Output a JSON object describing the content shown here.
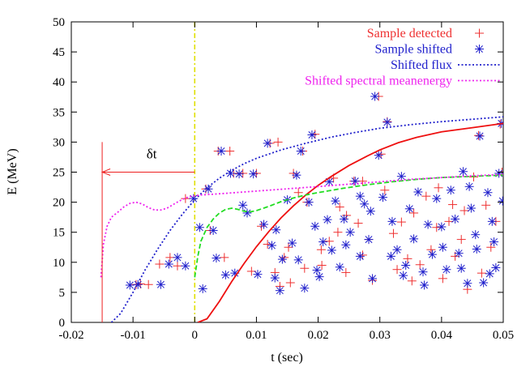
{
  "chart_data": {
    "type": "scatter",
    "title": "",
    "xlabel": "t (sec)",
    "ylabel": "E (MeV)",
    "xlim": [
      -0.02,
      0.05
    ],
    "ylim": [
      0,
      50
    ],
    "xticks": [
      -0.02,
      -0.01,
      0,
      0.01,
      0.02,
      0.03,
      0.04,
      0.05
    ],
    "xtick_labels": [
      "-0.02",
      "-0.01",
      "0",
      "0.01",
      "0.02",
      "0.03",
      "0.04",
      "0.05"
    ],
    "yticks": [
      0,
      5,
      10,
      15,
      20,
      25,
      30,
      35,
      40,
      45,
      50
    ],
    "ytick_labels": [
      "0",
      "5",
      "10",
      "15",
      "20",
      "25",
      "30",
      "35",
      "40",
      "45",
      "50"
    ],
    "grid": false,
    "legend_position": "top-right",
    "annotation": {
      "label": "δt",
      "x_start": 0,
      "x_end": -0.015,
      "y": 25,
      "marker_x": -0.015,
      "marker_y_range": [
        0,
        30
      ]
    },
    "vertical_line": {
      "x": 0,
      "color": "#e0e000"
    },
    "series": [
      {
        "name": "Sample detected",
        "kind": "points",
        "marker": "plus",
        "color": "#ee3030",
        "points": [
          [
            -0.0095,
            6.3
          ],
          [
            -0.0088,
            6.4
          ],
          [
            -0.0075,
            6.3
          ],
          [
            -0.0057,
            9.7
          ],
          [
            -0.004,
            10.8
          ],
          [
            -0.0028,
            9.4
          ],
          [
            -0.0015,
            20.6
          ],
          [
            0.0018,
            22.2
          ],
          [
            0.0025,
            15.3
          ],
          [
            0.0038,
            28.5
          ],
          [
            0.0048,
            10.8
          ],
          [
            0.0057,
            28.5
          ],
          [
            0.0063,
            24.8
          ],
          [
            0.0078,
            24.8
          ],
          [
            0.0092,
            8.5
          ],
          [
            0.01,
            24.8
          ],
          [
            0.0118,
            13.0
          ],
          [
            0.0122,
            29.8
          ],
          [
            0.013,
            8.3
          ],
          [
            0.0135,
            30.0
          ],
          [
            0.0138,
            6.0
          ],
          [
            0.0145,
            10.8
          ],
          [
            0.0152,
            12.5
          ],
          [
            0.016,
            24.8
          ],
          [
            0.0168,
            21.6
          ],
          [
            0.0175,
            28.5
          ],
          [
            0.0182,
            20.0
          ],
          [
            0.0195,
            31.3
          ],
          [
            0.0205,
            12.1
          ],
          [
            0.0218,
            13.5
          ],
          [
            0.0225,
            24.0
          ],
          [
            0.0232,
            15.0
          ],
          [
            0.0245,
            8.3
          ],
          [
            0.0258,
            23.5
          ],
          [
            0.0265,
            16.5
          ],
          [
            0.0272,
            23.5
          ],
          [
            0.0282,
            13.8
          ],
          [
            0.0288,
            7.0
          ],
          [
            0.0298,
            37.6
          ],
          [
            0.0302,
            28.0
          ],
          [
            0.0312,
            33.4
          ],
          [
            0.0322,
            14.8
          ],
          [
            0.0335,
            16.7
          ],
          [
            0.0345,
            10.6
          ],
          [
            0.0355,
            18.2
          ],
          [
            0.0365,
            9.6
          ],
          [
            0.0375,
            21.0
          ],
          [
            0.0383,
            12.1
          ],
          [
            0.0392,
            15.8
          ],
          [
            0.0402,
            7.3
          ],
          [
            0.0412,
            16.8
          ],
          [
            0.0422,
            11.0
          ],
          [
            0.0432,
            13.8
          ],
          [
            0.0442,
            5.5
          ],
          [
            0.0452,
            24.2
          ],
          [
            0.046,
            31.1
          ],
          [
            0.0472,
            19.5
          ],
          [
            0.048,
            12.5
          ],
          [
            0.0488,
            16.8
          ],
          [
            0.0495,
            33.0
          ],
          [
            0.0498,
            25.0
          ],
          [
            0.0206,
            9.5
          ],
          [
            0.0246,
            17.8
          ],
          [
            0.0352,
            6.9
          ],
          [
            0.0437,
            18.6
          ],
          [
            0.0108,
            16.0
          ],
          [
            0.0178,
            9.0
          ],
          [
            0.0272,
            11.2
          ],
          [
            0.0328,
            8.8
          ],
          [
            0.0395,
            22.4
          ],
          [
            0.0465,
            8.2
          ],
          [
            0.0155,
            6.6
          ],
          [
            0.0235,
            19.2
          ],
          [
            0.0308,
            22.0
          ],
          [
            0.0418,
            19.6
          ]
        ]
      },
      {
        "name": "Sample shifted",
        "kind": "points",
        "marker": "asterisk",
        "color": "#2020cc",
        "points": [
          [
            -0.0105,
            6.2
          ],
          [
            -0.0092,
            6.3
          ],
          [
            -0.0055,
            6.3
          ],
          [
            -0.0042,
            9.7
          ],
          [
            -0.0028,
            10.8
          ],
          [
            -0.0015,
            9.4
          ],
          [
            -0.0002,
            20.6
          ],
          [
            0.0008,
            15.8
          ],
          [
            0.0013,
            5.6
          ],
          [
            0.0022,
            22.2
          ],
          [
            0.003,
            15.3
          ],
          [
            0.0035,
            10.7
          ],
          [
            0.0043,
            28.5
          ],
          [
            0.005,
            7.9
          ],
          [
            0.0058,
            24.8
          ],
          [
            0.0065,
            8.2
          ],
          [
            0.0072,
            24.7
          ],
          [
            0.0078,
            19.5
          ],
          [
            0.0085,
            18.2
          ],
          [
            0.0095,
            24.7
          ],
          [
            0.0102,
            8.0
          ],
          [
            0.0112,
            16.3
          ],
          [
            0.0118,
            29.8
          ],
          [
            0.0125,
            12.8
          ],
          [
            0.013,
            7.4
          ],
          [
            0.0138,
            5.3
          ],
          [
            0.0142,
            10.5
          ],
          [
            0.015,
            20.4
          ],
          [
            0.0158,
            13.2
          ],
          [
            0.0165,
            24.5
          ],
          [
            0.0172,
            28.5
          ],
          [
            0.0178,
            5.7
          ],
          [
            0.0185,
            20.0
          ],
          [
            0.019,
            31.2
          ],
          [
            0.0198,
            8.7
          ],
          [
            0.0208,
            13.4
          ],
          [
            0.0215,
            17.1
          ],
          [
            0.0222,
            12.0
          ],
          [
            0.0228,
            20.2
          ],
          [
            0.0235,
            9.2
          ],
          [
            0.0242,
            17.2
          ],
          [
            0.0252,
            15.0
          ],
          [
            0.026,
            23.5
          ],
          [
            0.0268,
            11.0
          ],
          [
            0.0275,
            19.7
          ],
          [
            0.0282,
            13.8
          ],
          [
            0.0288,
            7.3
          ],
          [
            0.0292,
            37.6
          ],
          [
            0.0298,
            27.8
          ],
          [
            0.0305,
            20.8
          ],
          [
            0.0312,
            33.3
          ],
          [
            0.032,
            16.8
          ],
          [
            0.0328,
            12.1
          ],
          [
            0.0335,
            24.3
          ],
          [
            0.0342,
            9.5
          ],
          [
            0.0348,
            18.9
          ],
          [
            0.0355,
            13.9
          ],
          [
            0.0362,
            21.7
          ],
          [
            0.037,
            8.4
          ],
          [
            0.0378,
            16.3
          ],
          [
            0.0385,
            11.3
          ],
          [
            0.0392,
            20.6
          ],
          [
            0.04,
            15.9
          ],
          [
            0.0408,
            8.8
          ],
          [
            0.0415,
            22.0
          ],
          [
            0.0422,
            17.2
          ],
          [
            0.0428,
            11.5
          ],
          [
            0.0435,
            25.1
          ],
          [
            0.0442,
            6.5
          ],
          [
            0.0448,
            19.0
          ],
          [
            0.0455,
            14.6
          ],
          [
            0.0462,
            31.0
          ],
          [
            0.0468,
            6.6
          ],
          [
            0.0475,
            21.6
          ],
          [
            0.0482,
            16.8
          ],
          [
            0.0488,
            9.1
          ],
          [
            0.0493,
            24.8
          ],
          [
            0.0497,
            33.1
          ],
          [
            0.0499,
            20.2
          ],
          [
            0.0202,
            7.6
          ],
          [
            0.0285,
            18.5
          ],
          [
            0.0372,
            6.2
          ],
          [
            0.0457,
            12.2
          ],
          [
            0.0218,
            23.4
          ],
          [
            0.0338,
            7.8
          ],
          [
            0.0432,
            9.0
          ],
          [
            0.0195,
            16.0
          ],
          [
            0.0268,
            21.0
          ],
          [
            0.0402,
            12.5
          ],
          [
            0.0485,
            13.4
          ],
          [
            0.0168,
            10.4
          ],
          [
            0.0245,
            12.9
          ],
          [
            0.0318,
            11.0
          ],
          [
            0.0445,
            22.6
          ],
          [
            0.0132,
            15.4
          ],
          [
            0.0478,
            8.1
          ]
        ]
      },
      {
        "name": "",
        "kind": "line",
        "style": "solid",
        "color": "#ee1010",
        "points": [
          [
            0.0005,
            0
          ],
          [
            0.002,
            0.6
          ],
          [
            0.004,
            3.5
          ],
          [
            0.006,
            6.8
          ],
          [
            0.008,
            9.8
          ],
          [
            0.01,
            12.6
          ],
          [
            0.012,
            15.1
          ],
          [
            0.014,
            17.4
          ],
          [
            0.016,
            19.4
          ],
          [
            0.018,
            21.2
          ],
          [
            0.02,
            22.8
          ],
          [
            0.022,
            24.2
          ],
          [
            0.025,
            26.1
          ],
          [
            0.028,
            27.7
          ],
          [
            0.03,
            28.7
          ],
          [
            0.033,
            29.9
          ],
          [
            0.036,
            30.8
          ],
          [
            0.04,
            31.7
          ],
          [
            0.045,
            32.4
          ],
          [
            0.05,
            33.1
          ]
        ]
      },
      {
        "name": "",
        "kind": "line",
        "style": "dashed",
        "color": "#22dd22",
        "points": [
          [
            0.0,
            7.5
          ],
          [
            0.0005,
            11.0
          ],
          [
            0.001,
            13.5
          ],
          [
            0.002,
            15.8
          ],
          [
            0.003,
            17.2
          ],
          [
            0.004,
            18.2
          ],
          [
            0.005,
            18.8
          ],
          [
            0.006,
            19.0
          ],
          [
            0.007,
            18.8
          ],
          [
            0.008,
            18.5
          ],
          [
            0.009,
            18.4
          ],
          [
            0.01,
            18.6
          ],
          [
            0.012,
            19.3
          ],
          [
            0.014,
            20.1
          ],
          [
            0.016,
            20.7
          ],
          [
            0.018,
            21.2
          ],
          [
            0.02,
            21.6
          ],
          [
            0.024,
            22.3
          ],
          [
            0.028,
            22.9
          ],
          [
            0.032,
            23.4
          ],
          [
            0.036,
            23.8
          ],
          [
            0.04,
            24.1
          ],
          [
            0.045,
            24.3
          ],
          [
            0.05,
            24.5
          ]
        ]
      },
      {
        "name": "Shifted flux",
        "kind": "line",
        "style": "dotted",
        "color": "#2020cc",
        "points": [
          [
            -0.0135,
            0
          ],
          [
            -0.012,
            1.5
          ],
          [
            -0.01,
            5.0
          ],
          [
            -0.008,
            8.8
          ],
          [
            -0.006,
            12.2
          ],
          [
            -0.004,
            15.3
          ],
          [
            -0.002,
            18.0
          ],
          [
            0.0,
            20.4
          ],
          [
            0.002,
            22.4
          ],
          [
            0.004,
            24.0
          ],
          [
            0.006,
            25.3
          ],
          [
            0.008,
            26.4
          ],
          [
            0.01,
            27.3
          ],
          [
            0.014,
            28.7
          ],
          [
            0.018,
            29.8
          ],
          [
            0.022,
            30.8
          ],
          [
            0.026,
            31.6
          ],
          [
            0.03,
            32.3
          ],
          [
            0.035,
            32.9
          ],
          [
            0.04,
            33.4
          ],
          [
            0.045,
            33.8
          ],
          [
            0.05,
            34.2
          ]
        ]
      },
      {
        "name": "Shifted spectral meanenergy",
        "kind": "line",
        "style": "dotted",
        "color": "#ee22ee",
        "points": [
          [
            -0.0152,
            7.5
          ],
          [
            -0.0148,
            13.0
          ],
          [
            -0.0142,
            16.0
          ],
          [
            -0.0135,
            17.5
          ],
          [
            -0.0125,
            18.3
          ],
          [
            -0.0115,
            19.2
          ],
          [
            -0.0105,
            19.8
          ],
          [
            -0.0095,
            20.0
          ],
          [
            -0.0085,
            19.7
          ],
          [
            -0.0075,
            19.1
          ],
          [
            -0.0065,
            18.7
          ],
          [
            -0.0055,
            18.7
          ],
          [
            -0.0045,
            19.0
          ],
          [
            -0.0035,
            19.6
          ],
          [
            -0.0025,
            20.2
          ],
          [
            -0.0015,
            20.7
          ],
          [
            -0.0005,
            21.0
          ],
          [
            0.001,
            21.2
          ],
          [
            0.004,
            21.4
          ],
          [
            0.008,
            21.7
          ],
          [
            0.012,
            22.0
          ],
          [
            0.016,
            22.3
          ],
          [
            0.02,
            22.6
          ],
          [
            0.025,
            23.0
          ],
          [
            0.03,
            23.4
          ],
          [
            0.035,
            23.8
          ],
          [
            0.04,
            24.1
          ],
          [
            0.045,
            24.4
          ],
          [
            0.05,
            24.6
          ]
        ]
      }
    ]
  }
}
